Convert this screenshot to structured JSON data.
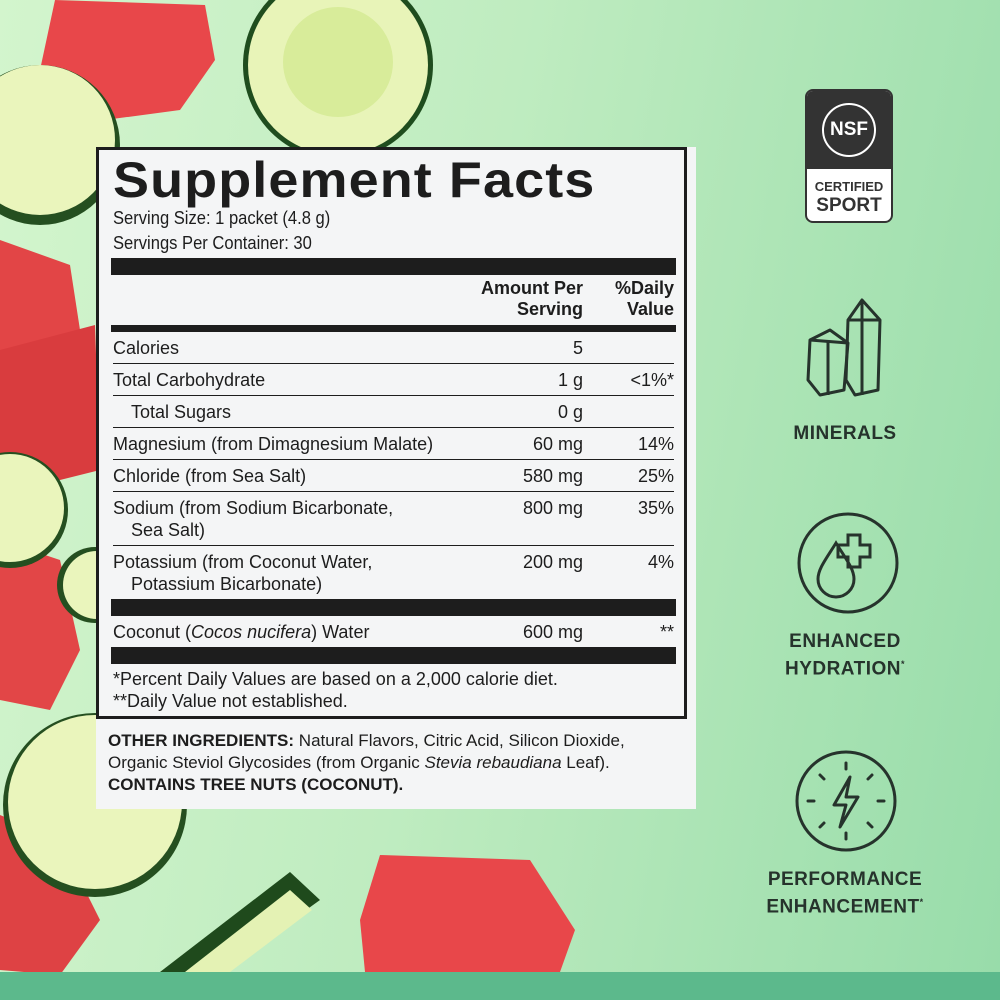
{
  "badge": {
    "top": "NSF",
    "bottom_1": "CERTIFIED",
    "bottom_2": "SPORT"
  },
  "facts": {
    "title": "Supplement Facts",
    "serving_size": "Serving Size: 1 packet (4.8 g)",
    "servings_per_container": "Servings Per Container: 30",
    "col_amount_1": "Amount Per",
    "col_amount_2": "Serving",
    "col_dv_1": "%Daily",
    "col_dv_2": "Value",
    "rows": [
      {
        "name": "Calories",
        "amount": "5",
        "dv": ""
      },
      {
        "name": "Total Carbohydrate",
        "amount": "1 g",
        "dv": "<1%*"
      },
      {
        "name": "Total Sugars",
        "amount": "0 g",
        "dv": ""
      },
      {
        "name": "Magnesium (from Dimagnesium Malate)",
        "amount": "60 mg",
        "dv": "14%"
      },
      {
        "name": "Chloride (from Sea Salt)",
        "amount": "580 mg",
        "dv": "25%"
      },
      {
        "name": "Sodium (from Sodium Bicarbonate,",
        "name2": "Sea Salt)",
        "amount": "800 mg",
        "dv": "35%"
      },
      {
        "name": "Potassium (from Coconut Water,",
        "name2": "Potassium Bicarbonate)",
        "amount": "200 mg",
        "dv": "4%"
      }
    ],
    "coconut": {
      "name_pre": "Coconut (",
      "name_italic": "Cocos nucifera",
      "name_post": ") Water",
      "amount": "600 mg",
      "dv": "**"
    },
    "footnote_1": "*Percent Daily Values are based on a 2,000 calorie diet.",
    "footnote_2": "**Daily Value not established."
  },
  "ingredients": {
    "label": "OTHER INGREDIENTS:",
    "text_1": " Natural Flavors, Citric Acid, Silicon Dioxide, Organic Steviol Glycosides (from Organic ",
    "italic": "Stevia rebaudiana",
    "text_2": " Leaf).",
    "allergen": "CONTAINS TREE NUTS (COCONUT)."
  },
  "benefits": [
    {
      "icon": "crystal-icon",
      "line1": "MINERALS"
    },
    {
      "icon": "water-drop-plus-icon",
      "line1": "ENHANCED",
      "line2": "HYDRATION",
      "mark": "*"
    },
    {
      "icon": "lightning-icon",
      "line1": "PERFORMANCE",
      "line2": "ENHANCEMENT",
      "mark": "*"
    }
  ],
  "colors": {
    "background": "#bfecc0",
    "strip": "#5cb98c",
    "text": "#1d1d1d",
    "icon": "#26332c"
  }
}
